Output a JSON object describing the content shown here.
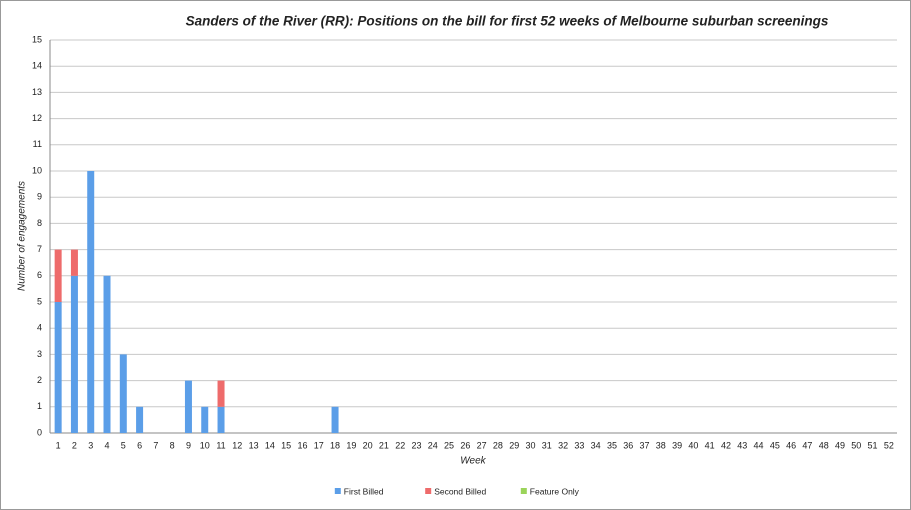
{
  "chart_data": {
    "type": "stacked_bar",
    "title": "Sanders of the River (RR): Positions on the bill for first 52 weeks of Melbourne suburban screenings",
    "x_label": "Week",
    "y_label": "Number of engagements",
    "categories": [
      "1",
      "2",
      "3",
      "4",
      "5",
      "6",
      "7",
      "8",
      "9",
      "10",
      "11",
      "12",
      "13",
      "14",
      "15",
      "16",
      "17",
      "18",
      "19",
      "20",
      "21",
      "22",
      "23",
      "24",
      "25",
      "26",
      "27",
      "28",
      "29",
      "30",
      "31",
      "32",
      "33",
      "34",
      "35",
      "36",
      "37",
      "38",
      "39",
      "40",
      "41",
      "42",
      "43",
      "44",
      "45",
      "46",
      "47",
      "48",
      "49",
      "50",
      "51",
      "52"
    ],
    "series": [
      {
        "name": "First Billed",
        "color": "#5b9ee8",
        "values": [
          5,
          6,
          10,
          6,
          3,
          1,
          0,
          0,
          2,
          1,
          1,
          0,
          0,
          0,
          0,
          0,
          0,
          1,
          0,
          0,
          0,
          0,
          0,
          0,
          0,
          0,
          0,
          0,
          0,
          0,
          0,
          0,
          0,
          0,
          0,
          0,
          0,
          0,
          0,
          0,
          0,
          0,
          0,
          0,
          0,
          0,
          0,
          0,
          0,
          0,
          0,
          0
        ]
      },
      {
        "name": "Second Billed",
        "color": "#ee6b6b",
        "values": [
          2,
          1,
          0,
          0,
          0,
          0,
          0,
          0,
          0,
          0,
          1,
          0,
          0,
          0,
          0,
          0,
          0,
          0,
          0,
          0,
          0,
          0,
          0,
          0,
          0,
          0,
          0,
          0,
          0,
          0,
          0,
          0,
          0,
          0,
          0,
          0,
          0,
          0,
          0,
          0,
          0,
          0,
          0,
          0,
          0,
          0,
          0,
          0,
          0,
          0,
          0,
          0
        ]
      },
      {
        "name": "Feature Only",
        "color": "#9bd45a",
        "values": [
          0,
          0,
          0,
          0,
          0,
          0,
          0,
          0,
          0,
          0,
          0,
          0,
          0,
          0,
          0,
          0,
          0,
          0,
          0,
          0,
          0,
          0,
          0,
          0,
          0,
          0,
          0,
          0,
          0,
          0,
          0,
          0,
          0,
          0,
          0,
          0,
          0,
          0,
          0,
          0,
          0,
          0,
          0,
          0,
          0,
          0,
          0,
          0,
          0,
          0,
          0,
          0
        ]
      }
    ],
    "ylim": [
      0,
      15
    ],
    "yticks": [
      0,
      1,
      2,
      3,
      4,
      5,
      6,
      7,
      8,
      9,
      10,
      11,
      12,
      13,
      14,
      15
    ],
    "grid": true,
    "legend": "bottom"
  }
}
